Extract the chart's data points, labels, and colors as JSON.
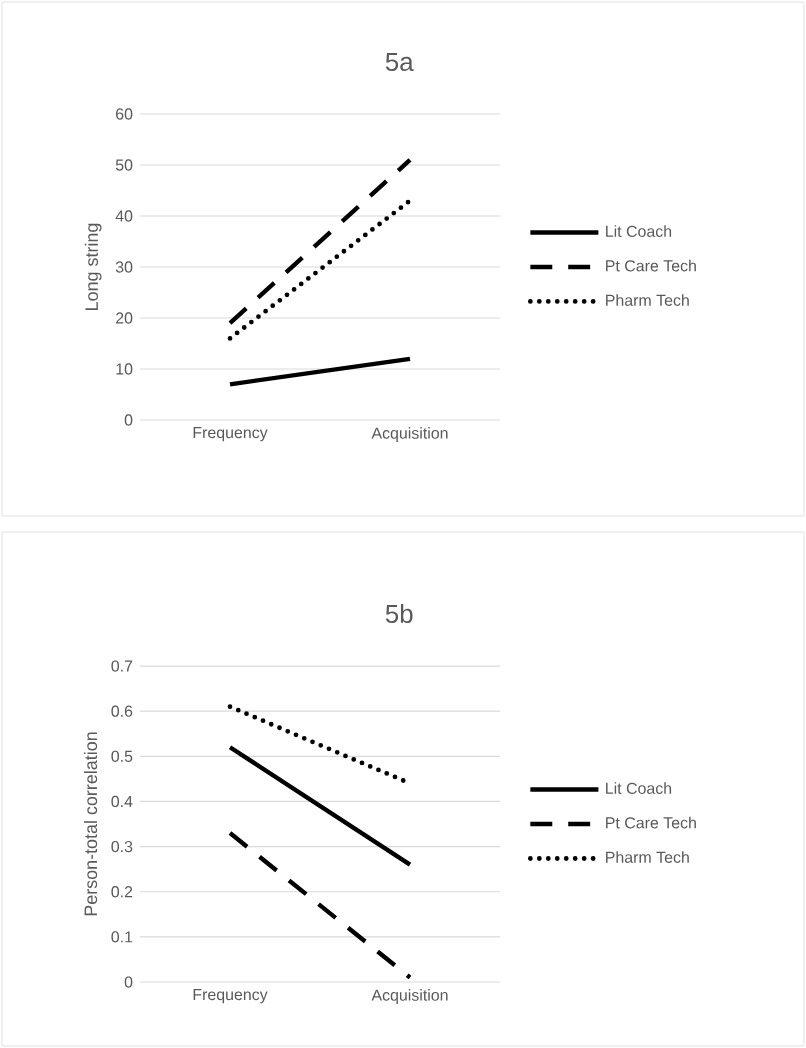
{
  "chart_data": [
    {
      "type": "line",
      "title": "5a",
      "ylabel": "Long string",
      "categories": [
        "Frequency",
        "Acquisition"
      ],
      "ylim": [
        0,
        60
      ],
      "yticks": [
        0,
        10,
        20,
        30,
        40,
        50,
        60
      ],
      "grid": "y",
      "legend": "right",
      "series": [
        {
          "name": "Lit Coach",
          "color": "#000000",
          "line_style": "solid",
          "values": [
            7,
            12
          ]
        },
        {
          "name": "Pt Care Tech",
          "color": "#000000",
          "line_style": "dashed",
          "values": [
            19,
            51
          ]
        },
        {
          "name": "Pharm Tech",
          "color": "#000000",
          "line_style": "dotted",
          "values": [
            16,
            43
          ]
        }
      ]
    },
    {
      "type": "line",
      "title": "5b",
      "ylabel": "Person-total correlation",
      "categories": [
        "Frequency",
        "Acquisition"
      ],
      "ylim": [
        0,
        0.7
      ],
      "yticks": [
        0,
        0.1,
        0.2,
        0.3,
        0.4,
        0.5,
        0.6,
        0.7
      ],
      "grid": "y",
      "legend": "right",
      "series": [
        {
          "name": "Lit Coach",
          "color": "#000000",
          "line_style": "solid",
          "values": [
            0.52,
            0.26
          ]
        },
        {
          "name": "Pt Care Tech",
          "color": "#000000",
          "line_style": "dashed",
          "values": [
            0.33,
            0.01
          ]
        },
        {
          "name": "Pharm Tech",
          "color": "#000000",
          "line_style": "dotted",
          "values": [
            0.61,
            0.44
          ]
        }
      ]
    }
  ]
}
